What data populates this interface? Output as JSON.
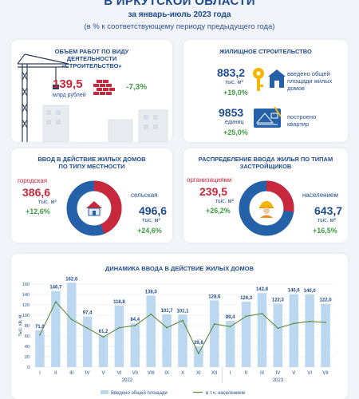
{
  "header": {
    "title": "В ИРКУТСКОЙ ОБЛАСТИ",
    "period": "за январь-июль 2023 года",
    "note": "(в % к соответствующему периоду предыдущего года)"
  },
  "construction": {
    "title": "ОБЪЕМ РАБОТ ПО ВИДУ ДЕЯТЕЛЬНОСТИ «СТРОИТЕЛЬСТВО»",
    "value": "139,5",
    "unit": "млрд рублей",
    "change": "-7,3%"
  },
  "housing": {
    "title": "ЖИЛИЩНОЕ СТРОИТЕЛЬСТВО",
    "area_value": "883,2",
    "area_unit": "тыс. м²",
    "area_label": "введено общей площади жилых домов",
    "area_change": "+19,0%",
    "apartments_value": "9853",
    "apartments_unit": "единиц",
    "apartments_label": "построено квартир",
    "apartments_change": "+25,0%"
  },
  "by_locality": {
    "title": "ВВОД В ДЕЙСТВИЕ ЖИЛЫХ ДОМОВ ПО ТИПУ МЕСТНОСТИ",
    "urban_label": "городская",
    "urban_value": "386,6",
    "urban_unit": "тыс. м²",
    "urban_change": "+12,6%",
    "rural_label": "сельская",
    "rural_value": "496,6",
    "rural_unit": "тыс. м²",
    "rural_change": "+24,6%",
    "colors": {
      "urban": "#c8283c",
      "rural": "#2561a8"
    }
  },
  "by_developer": {
    "title": "РАСПРЕДЕЛЕНИЕ ВВОДА ЖИЛЬЯ ПО ТИПАМ ЗАСТРОЙЩИКОВ",
    "org_label": "организациями",
    "org_value": "239,5",
    "org_unit": "тыс. м²",
    "org_change": "+26,2%",
    "pop_label": "населением",
    "pop_value": "643,7",
    "pop_unit": "тыс. м²",
    "pop_change": "+16,5%",
    "colors": {
      "org": "#c8283c",
      "pop": "#2561a8"
    }
  },
  "chart_data": {
    "type": "bar",
    "title": "ДИНАМИКА ВВОДА В ДЕЙСТВИЕ ЖИЛЫХ ДОМОВ",
    "ylabel": "тыс. кв. м",
    "ylim": [
      0,
      160
    ],
    "yticks": [
      0,
      20,
      40,
      60,
      80,
      100,
      120,
      140,
      160
    ],
    "categories": [
      "I",
      "II",
      "III",
      "IV",
      "V",
      "VI",
      "VII",
      "VIII",
      "IX",
      "X",
      "XI",
      "XII",
      "I",
      "II",
      "III",
      "IV",
      "V",
      "VI",
      "VII"
    ],
    "years": [
      {
        "label": "2022",
        "from": 0,
        "to": 11
      },
      {
        "label": "2023",
        "from": 12,
        "to": 18
      }
    ],
    "series": [
      {
        "name": "Введено общей площади",
        "type": "bar",
        "color": "#bcd8f0",
        "labels": [
          "71,0",
          "146,7",
          "162,6",
          "97,4",
          "61,2",
          "118,8",
          "84,4",
          "138,0",
          "101,7",
          "101,1",
          "39,8",
          "128,6",
          "89,4",
          "126,3",
          "142,8",
          "122,3",
          "140,6",
          "140,0",
          "122,0"
        ],
        "values": [
          71.0,
          146.7,
          162.6,
          97.4,
          61.2,
          118.8,
          84.4,
          138.0,
          101.7,
          101.1,
          39.8,
          128.6,
          89.4,
          126.3,
          142.8,
          122.3,
          140.6,
          140.0,
          122.0
        ]
      },
      {
        "name": "в т.ч. населением",
        "type": "line",
        "color": "#5a8a3a",
        "values": [
          62,
          126,
          92,
          75,
          58,
          76,
          80,
          102,
          76,
          90,
          26,
          83,
          78,
          98,
          103,
          75,
          84,
          88,
          86
        ]
      }
    ]
  }
}
